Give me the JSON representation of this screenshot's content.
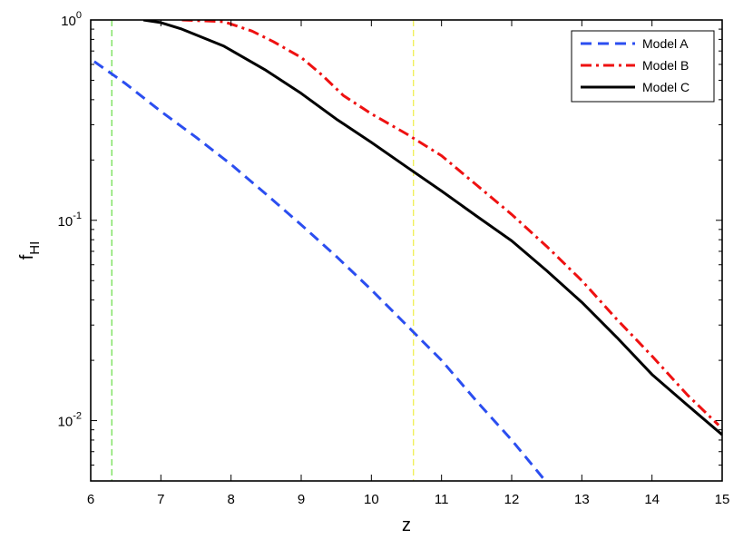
{
  "chart_data": {
    "type": "line",
    "xlabel": "z",
    "ylabel": {
      "main": "f",
      "sub": "HI"
    },
    "xlim": [
      6,
      15
    ],
    "ylim": [
      0.005,
      1.0
    ],
    "yscale": "log",
    "grid": false,
    "legend_position": "top-right",
    "x_ticks": [
      "6",
      "7",
      "8",
      "9",
      "10",
      "11",
      "12",
      "13",
      "14",
      "15"
    ],
    "y_ticks": [
      {
        "value": 0.01,
        "base": "10",
        "exp": "-2"
      },
      {
        "value": 0.1,
        "base": "10",
        "exp": "-1"
      },
      {
        "value": 1.0,
        "base": "10",
        "exp": "0"
      }
    ],
    "reference_lines": [
      {
        "x": 6.3,
        "color": "#66dd44"
      },
      {
        "x": 10.6,
        "color": "#eeee44"
      }
    ],
    "series": [
      {
        "name": "Model A",
        "color": "#2b4ef0",
        "style": "dashed",
        "points": [
          [
            6.05,
            0.62
          ],
          [
            6.5,
            0.48
          ],
          [
            7.0,
            0.35
          ],
          [
            7.5,
            0.26
          ],
          [
            8.0,
            0.19
          ],
          [
            8.5,
            0.135
          ],
          [
            9.0,
            0.095
          ],
          [
            9.5,
            0.066
          ],
          [
            10.0,
            0.045
          ],
          [
            10.5,
            0.03
          ],
          [
            11.0,
            0.02
          ],
          [
            11.5,
            0.0125
          ],
          [
            12.0,
            0.008
          ],
          [
            12.5,
            0.0049
          ]
        ]
      },
      {
        "name": "Model B",
        "color": "#ee1111",
        "style": "dashdot",
        "points": [
          [
            7.3,
            1.0
          ],
          [
            7.9,
            0.98
          ],
          [
            8.3,
            0.88
          ],
          [
            8.6,
            0.78
          ],
          [
            9.0,
            0.65
          ],
          [
            9.3,
            0.53
          ],
          [
            9.6,
            0.42
          ],
          [
            10.0,
            0.34
          ],
          [
            10.5,
            0.27
          ],
          [
            11.0,
            0.21
          ],
          [
            11.5,
            0.15
          ],
          [
            12.0,
            0.107
          ],
          [
            12.5,
            0.074
          ],
          [
            13.0,
            0.05
          ],
          [
            13.5,
            0.032
          ],
          [
            14.0,
            0.021
          ],
          [
            14.5,
            0.0135
          ],
          [
            14.95,
            0.0095
          ]
        ]
      },
      {
        "name": "Model C",
        "color": "#000000",
        "style": "solid",
        "points": [
          [
            6.75,
            1.0
          ],
          [
            7.0,
            0.97
          ],
          [
            7.3,
            0.9
          ],
          [
            7.9,
            0.74
          ],
          [
            8.5,
            0.56
          ],
          [
            9.0,
            0.43
          ],
          [
            9.5,
            0.32
          ],
          [
            10.0,
            0.245
          ],
          [
            10.5,
            0.185
          ],
          [
            11.0,
            0.14
          ],
          [
            11.5,
            0.105
          ],
          [
            12.0,
            0.079
          ],
          [
            12.5,
            0.056
          ],
          [
            13.0,
            0.039
          ],
          [
            13.5,
            0.026
          ],
          [
            14.0,
            0.017
          ],
          [
            14.5,
            0.012
          ],
          [
            15.0,
            0.0085
          ]
        ]
      }
    ]
  }
}
